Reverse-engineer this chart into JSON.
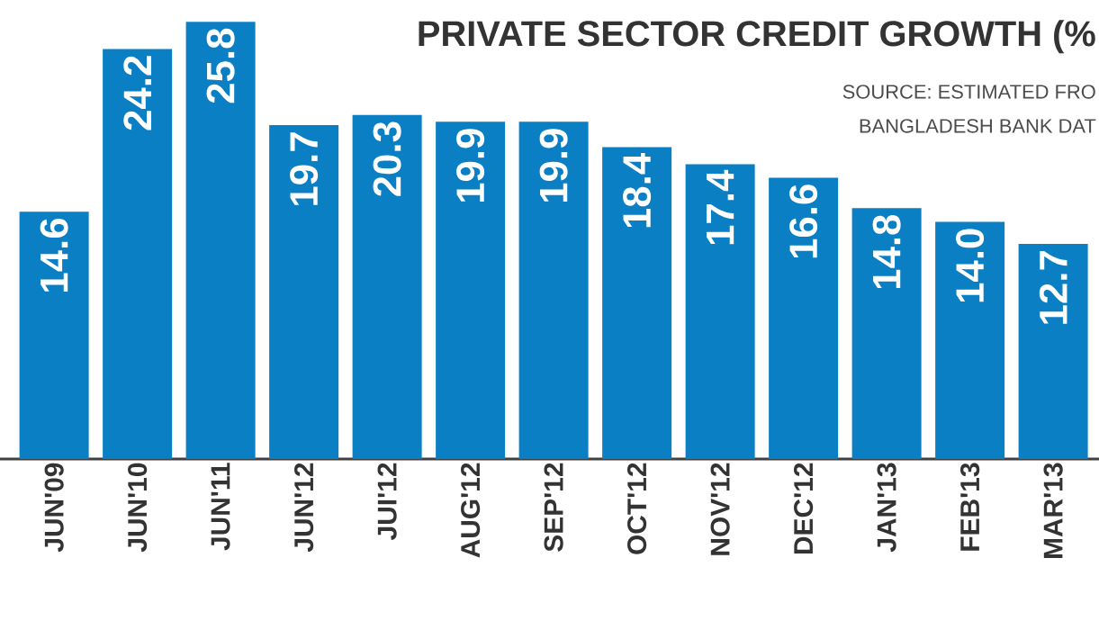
{
  "chart_data": {
    "type": "bar",
    "title": "PRIVATE SECTOR CREDIT GROWTH (%",
    "annotations": [
      "SOURCE: ESTIMATED FRO",
      "BANGLADESH BANK DAT"
    ],
    "categories": [
      "JUN'09",
      "JUN'10",
      "JUN'11",
      "JUN'12",
      "JUI'12",
      "AUG'12",
      "SEP'12",
      "OCT'12",
      "NOV'12",
      "DEC'12",
      "JAN'13",
      "FEB'13",
      "MAR'13"
    ],
    "values": [
      14.6,
      24.2,
      25.8,
      19.7,
      20.3,
      19.9,
      19.9,
      18.4,
      17.4,
      16.6,
      14.8,
      14.0,
      12.7
    ],
    "value_labels": [
      "14.6",
      "24.2",
      "25.8",
      "19.7",
      "20.3",
      "19.9",
      "19.9",
      "18.4",
      "17.4",
      "16.6",
      "14.8",
      "14.0",
      "12.7"
    ],
    "color": "#0a7fc4"
  }
}
